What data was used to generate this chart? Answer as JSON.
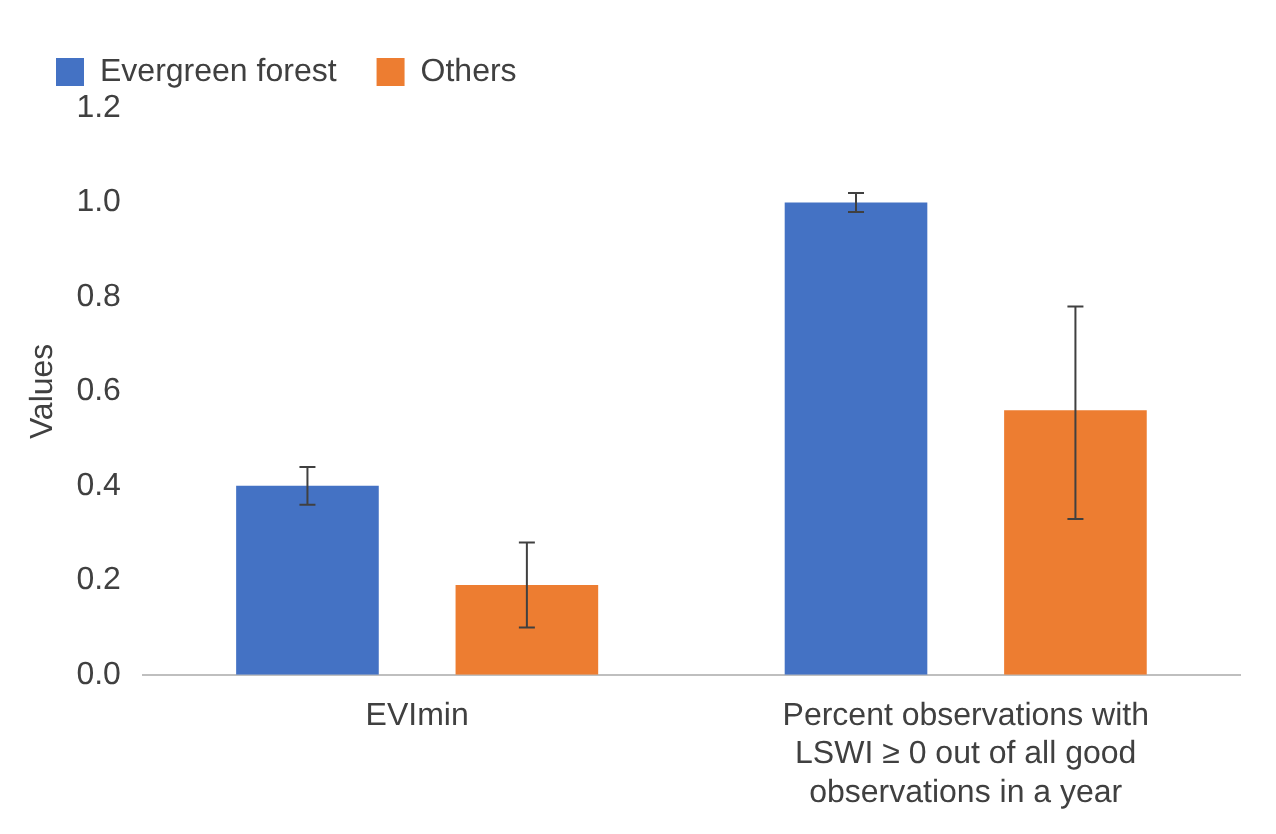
{
  "chart_data": {
    "type": "bar",
    "ylabel": "Values",
    "categories": [
      "EVImin",
      "Percent observations with LSWI ≥ 0 out of all good observations in a year"
    ],
    "series": [
      {
        "name": "Evergreen forest",
        "color": "#4472c4",
        "values": [
          0.4,
          1.0
        ],
        "errors": [
          [
            0.36,
            0.44
          ],
          [
            0.98,
            1.02
          ]
        ]
      },
      {
        "name": "Others",
        "color": "#ed7d31",
        "values": [
          0.19,
          0.56
        ],
        "errors": [
          [
            0.1,
            0.28
          ],
          [
            0.33,
            0.78
          ]
        ]
      }
    ],
    "ylim": [
      0,
      1.2
    ],
    "yticks": [
      {
        "value": 0,
        "label": "0.0"
      },
      {
        "value": 0.2,
        "label": "0.2"
      },
      {
        "value": 0.4,
        "label": "0.4"
      },
      {
        "value": 0.6,
        "label": "0.6"
      },
      {
        "value": 0.8,
        "label": "0.8"
      },
      {
        "value": 1.0,
        "label": "1.0"
      },
      {
        "value": 1.2,
        "label": "1.2"
      }
    ],
    "grid": false,
    "legend": "top left"
  }
}
